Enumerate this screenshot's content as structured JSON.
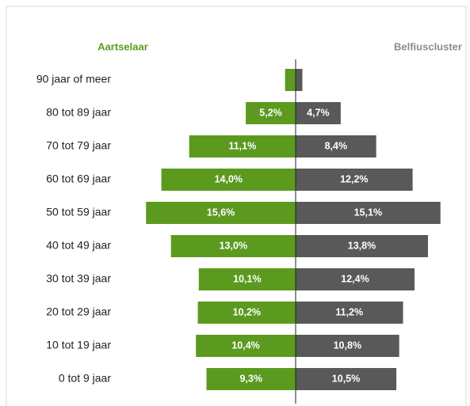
{
  "chart_data": {
    "type": "pyramid",
    "categories": [
      "90 jaar of meer",
      "80 tot 89 jaar",
      "70 tot 79 jaar",
      "60 tot 69 jaar",
      "50 tot 59 jaar",
      "40 tot 49 jaar",
      "30 tot 39 jaar",
      "20 tot 29 jaar",
      "10 tot 19 jaar",
      "0 tot 9 jaar"
    ],
    "series": [
      {
        "name": "Aartselaar",
        "color": "#5b9a1f",
        "side": "left",
        "values": [
          1.1,
          5.2,
          11.1,
          14.0,
          15.6,
          13.0,
          10.1,
          10.2,
          10.4,
          9.3
        ],
        "value_labels": [
          null,
          "5,2%",
          "11,1%",
          "14,0%",
          "15,6%",
          "13,0%",
          "10,1%",
          "10,2%",
          "10,4%",
          "9,3%"
        ]
      },
      {
        "name": "Belfiuscluster",
        "color": "#595959",
        "side": "right",
        "values": [
          0.7,
          4.7,
          8.4,
          12.2,
          15.1,
          13.8,
          12.4,
          11.2,
          10.8,
          10.5
        ],
        "value_labels": [
          null,
          "4,7%",
          "8,4%",
          "12,2%",
          "15,1%",
          "13,8%",
          "12,4%",
          "11,2%",
          "10,8%",
          "10,5%"
        ]
      }
    ]
  }
}
